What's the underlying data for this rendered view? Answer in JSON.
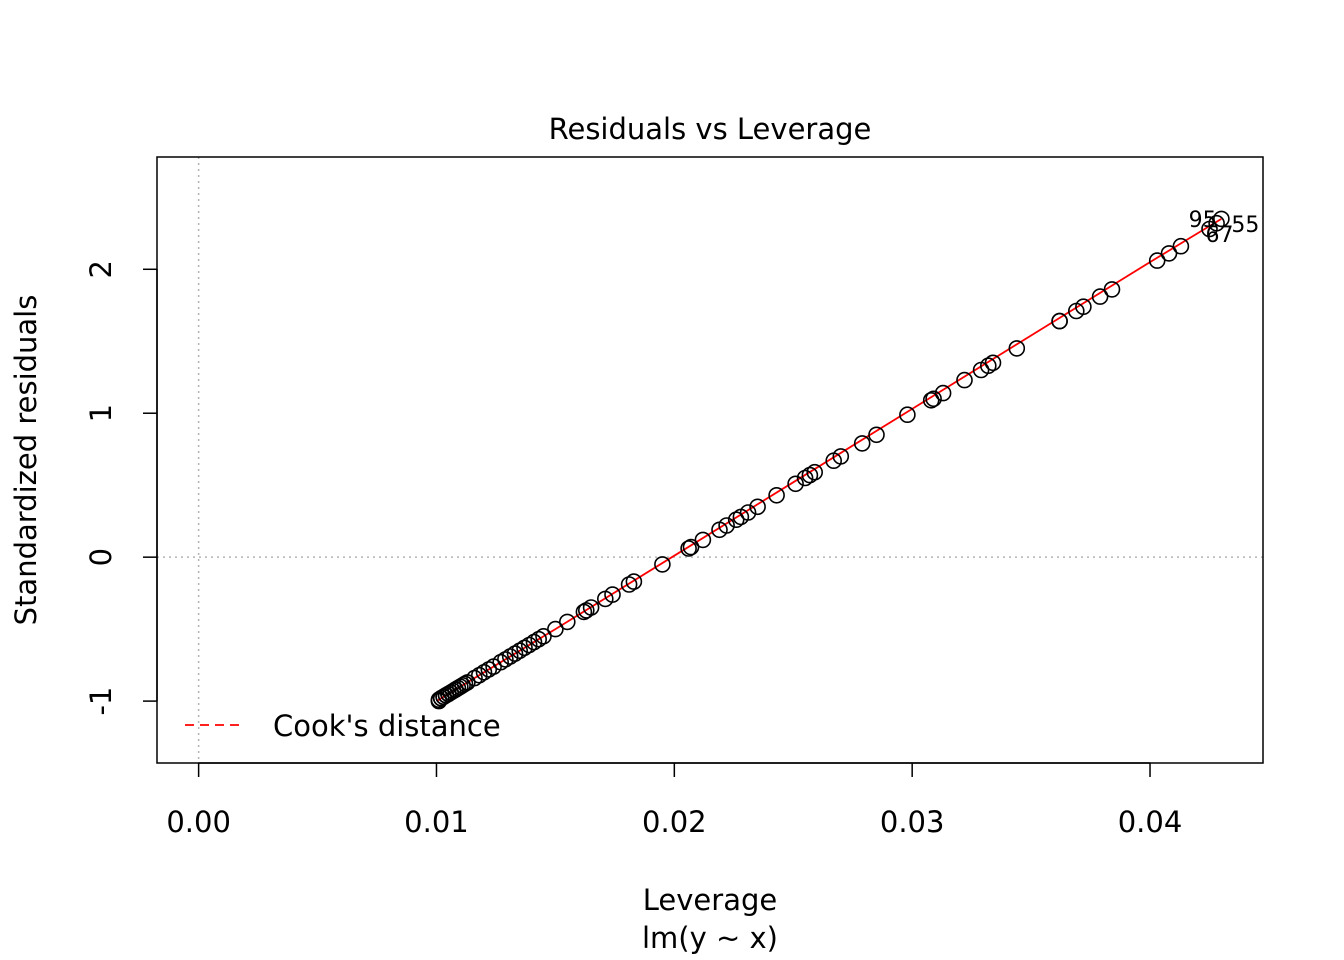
{
  "chart_data": {
    "type": "scatter",
    "title": "Residuals vs Leverage",
    "xlabel": "Leverage",
    "sublabel": "lm(y ~ x)",
    "ylabel": "Standardized residuals",
    "xlim": [
      -0.00175,
      0.04475
    ],
    "ylim": [
      -1.43,
      2.78
    ],
    "x_ticks": [
      "0.00",
      "0.01",
      "0.02",
      "0.03",
      "0.04"
    ],
    "x_tick_values": [
      0.0,
      0.01,
      0.02,
      0.03,
      0.04
    ],
    "y_ticks": [
      "-1",
      "0",
      "1",
      "2"
    ],
    "y_tick_values": [
      -1,
      0,
      1,
      2
    ],
    "reference_lines": {
      "vertical": 0.0,
      "horizontal": 0.0,
      "style": "dotted",
      "color": "#b3b3b3"
    },
    "grid": false,
    "legend": {
      "position": "bottom-left",
      "entries": [
        {
          "label": "Cook's distance",
          "color": "#ff0000",
          "style": "dashed"
        }
      ]
    },
    "smoother": {
      "color": "#ff0000",
      "x": [
        0.01,
        0.015,
        0.02,
        0.025,
        0.03,
        0.035,
        0.04,
        0.043
      ],
      "y": [
        -1.0,
        -0.5,
        0.01,
        0.52,
        1.03,
        1.54,
        2.05,
        2.35
      ]
    },
    "points": {
      "color": "#000000",
      "x": [
        0.0101,
        0.0101,
        0.0102,
        0.0102,
        0.0103,
        0.0103,
        0.0104,
        0.0104,
        0.0105,
        0.0105,
        0.0106,
        0.0107,
        0.0108,
        0.0108,
        0.0109,
        0.011,
        0.0111,
        0.0112,
        0.0113,
        0.0116,
        0.0118,
        0.012,
        0.0122,
        0.0124,
        0.0127,
        0.0129,
        0.0131,
        0.0133,
        0.0135,
        0.0137,
        0.0139,
        0.0141,
        0.0143,
        0.0145,
        0.015,
        0.0155,
        0.0162,
        0.0163,
        0.0165,
        0.0171,
        0.0174,
        0.0181,
        0.0183,
        0.0195,
        0.0206,
        0.0207,
        0.0212,
        0.0219,
        0.0222,
        0.0226,
        0.0228,
        0.0231,
        0.0235,
        0.0243,
        0.0251,
        0.0255,
        0.0257,
        0.0259,
        0.0267,
        0.027,
        0.0279,
        0.0285,
        0.0298,
        0.0308,
        0.0309,
        0.0313,
        0.0322,
        0.0329,
        0.0332,
        0.0334,
        0.0344,
        0.0362,
        0.0362,
        0.0369,
        0.0372,
        0.0379,
        0.0384,
        0.0403,
        0.0408,
        0.0413,
        0.0425,
        0.0428,
        0.043
      ],
      "y": [
        -1.0,
        -0.99,
        -0.98,
        -0.98,
        -0.97,
        -0.97,
        -0.96,
        -0.96,
        -0.95,
        -0.95,
        -0.94,
        -0.93,
        -0.92,
        -0.92,
        -0.91,
        -0.9,
        -0.89,
        -0.88,
        -0.87,
        -0.84,
        -0.82,
        -0.8,
        -0.78,
        -0.76,
        -0.73,
        -0.71,
        -0.69,
        -0.67,
        -0.65,
        -0.63,
        -0.61,
        -0.59,
        -0.57,
        -0.55,
        -0.5,
        -0.45,
        -0.38,
        -0.37,
        -0.35,
        -0.29,
        -0.26,
        -0.19,
        -0.17,
        -0.05,
        0.06,
        0.07,
        0.12,
        0.19,
        0.22,
        0.26,
        0.28,
        0.31,
        0.35,
        0.43,
        0.51,
        0.55,
        0.57,
        0.59,
        0.67,
        0.7,
        0.79,
        0.85,
        0.99,
        1.09,
        1.1,
        1.14,
        1.23,
        1.3,
        1.33,
        1.35,
        1.45,
        1.64,
        1.64,
        1.71,
        1.74,
        1.81,
        1.86,
        2.06,
        2.11,
        2.16,
        2.28,
        2.32,
        2.35
      ]
    },
    "point_labels": [
      "95",
      "67",
      "55"
    ]
  }
}
